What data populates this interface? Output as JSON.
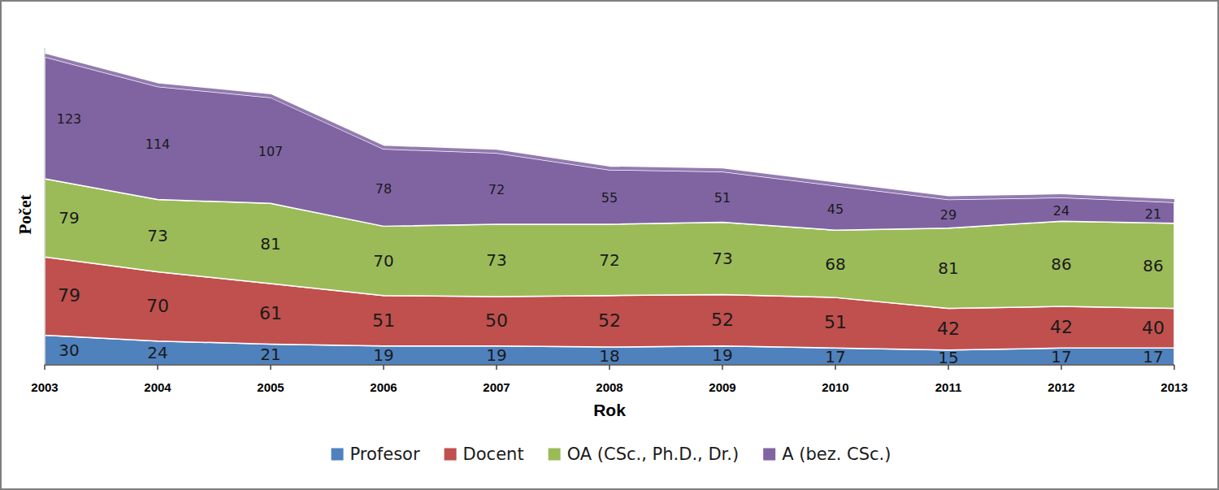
{
  "chart_data": {
    "type": "area",
    "stacked": true,
    "data_labels": true,
    "tick_labels": "x",
    "legend": "bottom",
    "x_label": "Rok",
    "y_label": "Počet",
    "categories": [
      "2003",
      "2004",
      "2005",
      "2006",
      "2007",
      "2008",
      "2009",
      "2010",
      "2011",
      "2012",
      "2013"
    ],
    "ylim": [
      0,
      320
    ],
    "series": [
      {
        "name": "Profesor",
        "color": "#4f81bd",
        "values": [
          30,
          24,
          21,
          19,
          19,
          18,
          19,
          17,
          15,
          17,
          17
        ]
      },
      {
        "name": "Docent",
        "color": "#c0504d",
        "values": [
          79,
          70,
          61,
          51,
          50,
          52,
          52,
          51,
          42,
          42,
          40
        ]
      },
      {
        "name": "OA (CSc., Ph.D., Dr.)",
        "color": "#9bbb59",
        "values": [
          79,
          73,
          81,
          70,
          73,
          72,
          73,
          68,
          81,
          86,
          86
        ]
      },
      {
        "name": "A (bez. CSc.)",
        "color": "#8064a2",
        "values": [
          123,
          114,
          107,
          78,
          72,
          55,
          51,
          45,
          29,
          24,
          21
        ]
      }
    ]
  }
}
